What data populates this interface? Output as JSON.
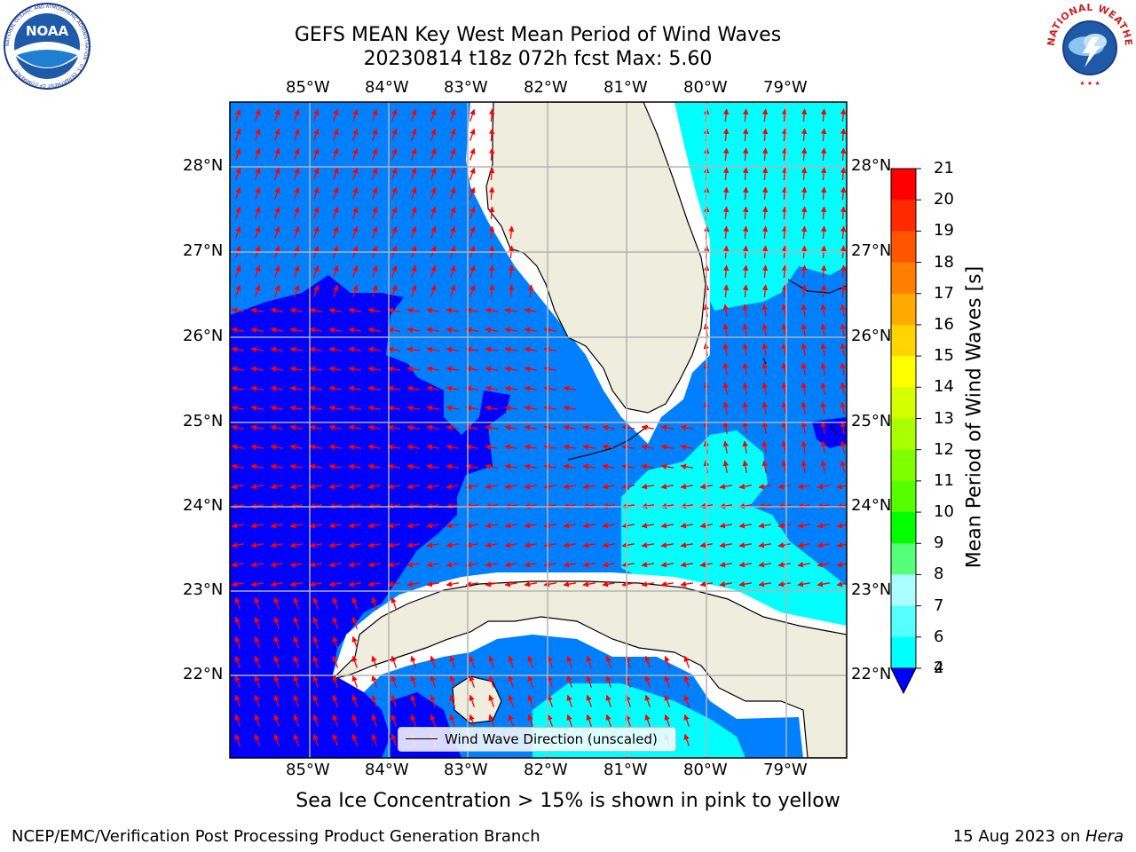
{
  "title": {
    "line1": "GEFS MEAN Key West Mean Period of Wind Waves",
    "line2": "20230814 t18z 072h fcst   Max: 5.60"
  },
  "map": {
    "lon_labels": [
      "85°W",
      "84°W",
      "83°W",
      "82°W",
      "81°W",
      "80°W",
      "79°W"
    ],
    "lat_labels": [
      "28°N",
      "27°N",
      "26°N",
      "25°N",
      "24°N",
      "23°N",
      "22°N"
    ],
    "land_color": "#efedde",
    "coast_color": "#000000",
    "grid_color": "#b3b3b3",
    "arrow_color": "#ff0000",
    "legend_label": "Wind Wave Direction (unscaled)"
  },
  "colorbar": {
    "title": "Mean Period of Wind Waves [s]",
    "ticks": [
      "21",
      "20",
      "19",
      "18",
      "17",
      "16",
      "15",
      "14",
      "13",
      "12",
      "11",
      "10",
      "9",
      "8",
      "7",
      "6",
      "4",
      "2"
    ],
    "colors": [
      "#ff0000",
      "#ff2a00",
      "#ff5500",
      "#ff7f00",
      "#ffaa00",
      "#ffd400",
      "#ffff00",
      "#d4ff00",
      "#aaff00",
      "#80ff00",
      "#55ff00",
      "#00ff00",
      "#55ff77",
      "#aaffff",
      "#55ffff",
      "#00ffff",
      "#0080ff",
      "#0000ff"
    ]
  },
  "caption": "Sea Ice Concentration > 15% is shown in pink to yellow",
  "footer": {
    "left": "NCEP/EMC/Verification Post Processing Product Generation Branch",
    "date": "15 Aug 2023 on ",
    "host": "Hera"
  },
  "logos": {
    "noaa": "NOAA",
    "noaa_ring": "NATIONAL OCEANIC AND ATMOSPHERIC ADMINISTRATION · U.S. DEPARTMENT OF COMMERCE",
    "nws_ring": "NATIONAL WEATHER SERVICE"
  }
}
